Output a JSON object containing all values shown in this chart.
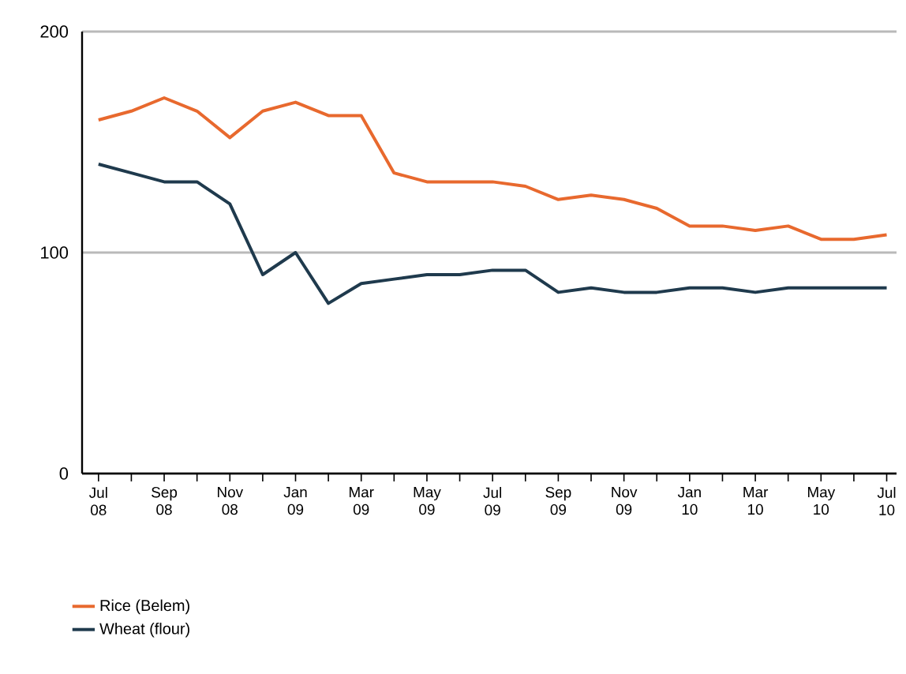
{
  "chart_data": {
    "type": "line",
    "categories": [
      "Jul 08",
      null,
      "Sep 08",
      null,
      "Nov 08",
      null,
      "Jan 09",
      null,
      "Mar 09",
      null,
      "May 09",
      null,
      "Jul 09",
      null,
      "Sep 09",
      null,
      "Nov 09",
      null,
      "Jan 10",
      null,
      "Mar 10",
      null,
      "May 10",
      null,
      "Jul 10"
    ],
    "series": [
      {
        "name": "Rice (Belem)",
        "color": "#e8692e",
        "values": [
          160,
          164,
          170,
          164,
          152,
          164,
          168,
          162,
          162,
          136,
          132,
          132,
          132,
          130,
          124,
          126,
          124,
          120,
          112,
          112,
          110,
          112,
          106,
          106,
          108
        ]
      },
      {
        "name": "Wheat (flour)",
        "color": "#1f3a4d",
        "values": [
          140,
          136,
          132,
          132,
          122,
          90,
          100,
          77,
          86,
          88,
          90,
          90,
          92,
          92,
          82,
          84,
          82,
          82,
          84,
          84,
          82,
          84,
          84,
          84,
          84
        ]
      }
    ],
    "ylim": [
      0,
      200
    ],
    "yticks": [
      0,
      100,
      200
    ],
    "grid": "y",
    "legend": "bottom",
    "marker": "none",
    "line_style": "solid"
  }
}
